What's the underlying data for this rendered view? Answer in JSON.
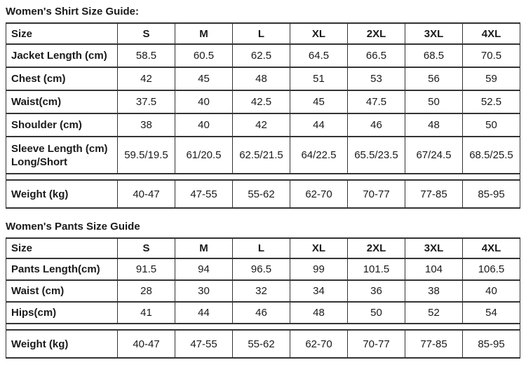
{
  "page": {
    "background": "#ffffff",
    "text_color": "#1a1a1a",
    "border_color": "#333333"
  },
  "tables": [
    {
      "title": "Women's Shirt Size Guide:",
      "header": [
        "Size",
        "S",
        "M",
        "L",
        "XL",
        "2XL",
        "3XL",
        "4XL"
      ],
      "rows": [
        {
          "label": "Jacket Length (cm)",
          "values": [
            "58.5",
            "60.5",
            "62.5",
            "64.5",
            "66.5",
            "68.5",
            "70.5"
          ]
        },
        {
          "label": "Chest (cm)",
          "values": [
            "42",
            "45",
            "48",
            "51",
            "53",
            "56",
            "59"
          ]
        },
        {
          "label": "Waist(cm)",
          "values": [
            "37.5",
            "40",
            "42.5",
            "45",
            "47.5",
            "50",
            "52.5"
          ]
        },
        {
          "label": "Shoulder (cm)",
          "values": [
            "38",
            "40",
            "42",
            "44",
            "46",
            "48",
            "50"
          ]
        },
        {
          "label": "Sleeve Length (cm) Long/Short",
          "values": [
            "59.5/19.5",
            "61/20.5",
            "62.5/21.5",
            "64/22.5",
            "65.5/23.5",
            "67/24.5",
            "68.5/25.5"
          ]
        }
      ],
      "footer": {
        "label": "Weight (kg)",
        "values": [
          "40-47",
          "47-55",
          "55-62",
          "62-70",
          "70-77",
          "77-85",
          "85-95"
        ]
      }
    },
    {
      "title": "Women's Pants Size Guide",
      "header": [
        "Size",
        "S",
        "M",
        "L",
        "XL",
        "2XL",
        "3XL",
        "4XL"
      ],
      "rows": [
        {
          "label": "Pants Length(cm)",
          "values": [
            "91.5",
            "94",
            "96.5",
            "99",
            "101.5",
            "104",
            "106.5"
          ]
        },
        {
          "label": "Waist (cm)",
          "values": [
            "28",
            "30",
            "32",
            "34",
            "36",
            "38",
            "40"
          ]
        },
        {
          "label": "Hips(cm)",
          "values": [
            "41",
            "44",
            "46",
            "48",
            "50",
            "52",
            "54"
          ]
        }
      ],
      "footer": {
        "label": "Weight (kg)",
        "values": [
          "40-47",
          "47-55",
          "55-62",
          "62-70",
          "70-77",
          "77-85",
          "85-95"
        ]
      }
    }
  ]
}
